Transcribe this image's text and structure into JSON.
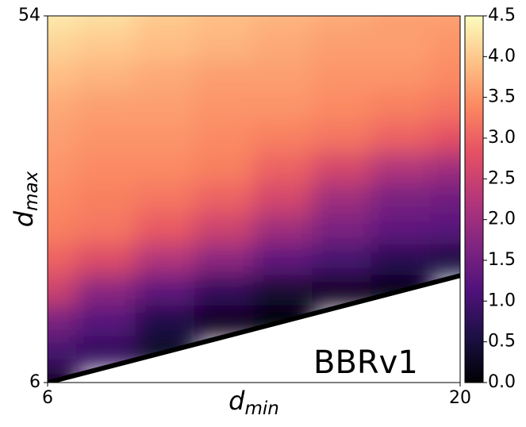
{
  "chart_data": {
    "type": "heatmap",
    "x_label": {
      "main": "d",
      "sub": "min"
    },
    "y_label": {
      "main": "d",
      "sub": "max"
    },
    "annotation": "BBRv1",
    "x": [
      6,
      8,
      10,
      12,
      14,
      16,
      18,
      20
    ],
    "y": [
      54,
      50,
      46,
      42,
      38,
      34,
      30,
      26,
      22,
      18,
      14,
      10,
      6
    ],
    "values": [
      [
        4.3,
        4.2,
        4.0,
        3.9,
        3.8,
        3.7,
        3.6,
        3.6
      ],
      [
        4.1,
        4.0,
        3.9,
        3.8,
        3.7,
        3.6,
        3.6,
        3.5
      ],
      [
        3.9,
        3.8,
        3.7,
        3.6,
        3.6,
        3.5,
        3.5,
        3.4
      ],
      [
        3.7,
        3.6,
        3.6,
        3.5,
        3.5,
        3.4,
        3.3,
        3.2
      ],
      [
        3.6,
        3.5,
        3.5,
        3.4,
        3.3,
        3.2,
        3.0,
        2.8
      ],
      [
        3.5,
        3.4,
        3.4,
        3.3,
        3.0,
        2.6,
        2.2,
        2.0
      ],
      [
        3.4,
        3.3,
        3.2,
        3.0,
        2.6,
        2.0,
        1.6,
        1.5
      ],
      [
        3.3,
        3.2,
        2.9,
        2.5,
        2.0,
        1.6,
        1.3,
        1.2
      ],
      [
        3.0,
        2.7,
        2.2,
        1.8,
        1.3,
        1.0,
        0.7,
        0.5
      ],
      [
        2.5,
        1.8,
        1.3,
        0.8,
        0.4,
        0.2,
        0.1,
        null
      ],
      [
        1.6,
        1.2,
        0.6,
        0.2,
        0.0,
        null,
        null,
        null
      ],
      [
        1.0,
        0.8,
        0.3,
        null,
        null,
        null,
        null,
        null
      ],
      [
        0.2,
        null,
        null,
        null,
        null,
        null,
        null,
        null
      ]
    ],
    "xlim": [
      6,
      20
    ],
    "xticks": [
      6,
      20
    ],
    "ylim": [
      6,
      54
    ],
    "yticks": [
      6,
      54
    ],
    "colormap": [
      "#000004",
      "#1c1044",
      "#4f127b",
      "#812581",
      "#b5367a",
      "#e55064",
      "#fb8761",
      "#fec287",
      "#fcfdbf"
    ],
    "clim": [
      0,
      4.5
    ],
    "cticks": [
      {
        "value": 0,
        "label": "0.0"
      },
      0.5,
      {
        "value": 1,
        "label": "1.0"
      },
      1.5,
      {
        "value": 2,
        "label": "2.0"
      },
      2.5,
      {
        "value": 3,
        "label": "3.0"
      },
      3.5,
      {
        "value": 4,
        "label": "4.0"
      },
      4.5
    ]
  }
}
